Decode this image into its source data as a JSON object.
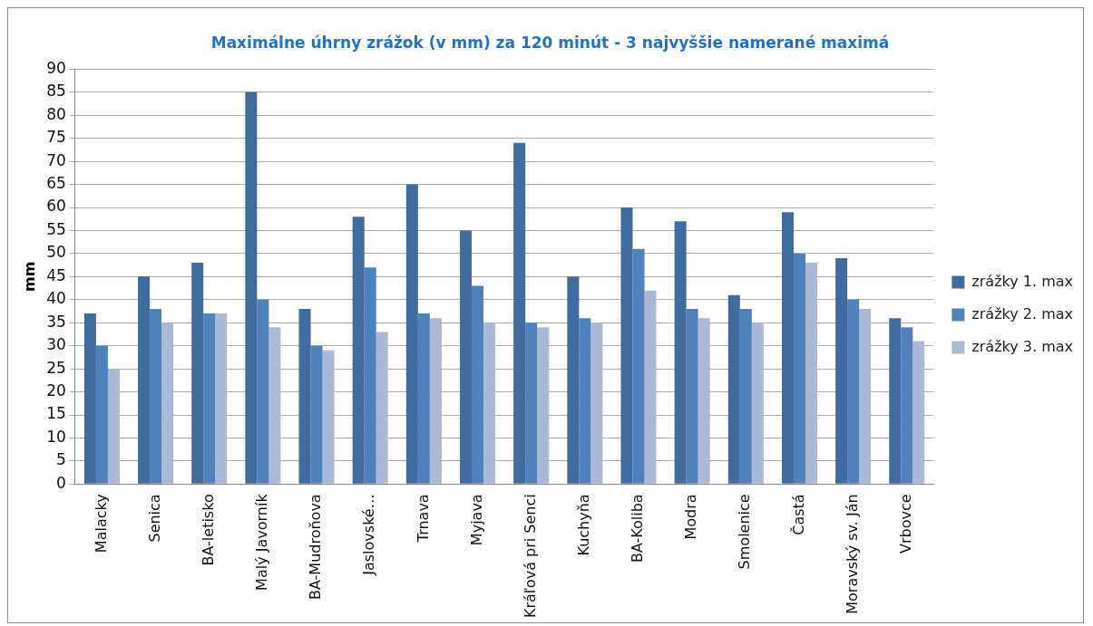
{
  "chart_data": {
    "type": "bar",
    "title": "Maximálne úhrny zrážok (v mm) za 120 minút - 3 najvyššie namerané maximá",
    "ylabel": "mm",
    "categories": [
      "Malacky",
      "Senica",
      "BA-letisko",
      "Malý Javorník",
      "BA-Mudroňova",
      "Jaslovské…",
      "Trnava",
      "Myjava",
      "Kráľová pri Senci",
      "Kuchyňa",
      "BA-Koliba",
      "Modra",
      "Smolenice",
      "Častá",
      "Moravský sv. Ján",
      "Vrbovce"
    ],
    "series": [
      {
        "name": "zrážky 1. max",
        "color": "#3f6b9f",
        "values": [
          37,
          45,
          48,
          85,
          38,
          58,
          65,
          55,
          74,
          45,
          60,
          57,
          41,
          59,
          49,
          36
        ]
      },
      {
        "name": "zrážky 2. max",
        "color": "#4f81bd",
        "values": [
          30,
          38,
          37,
          40,
          30,
          47,
          37,
          43,
          35,
          36,
          51,
          38,
          38,
          50,
          40,
          34
        ]
      },
      {
        "name": "zrážky 3. max",
        "color": "#aab9d8",
        "values": [
          25,
          35,
          37,
          34,
          29,
          33,
          36,
          35,
          34,
          35,
          42,
          36,
          35,
          48,
          38,
          31
        ]
      }
    ],
    "ylim": [
      0,
      90
    ],
    "yticks": [
      0,
      5,
      10,
      15,
      20,
      25,
      30,
      35,
      40,
      45,
      50,
      55,
      60,
      65,
      70,
      75,
      80,
      85,
      90
    ],
    "grid": "y",
    "legend": "right"
  }
}
